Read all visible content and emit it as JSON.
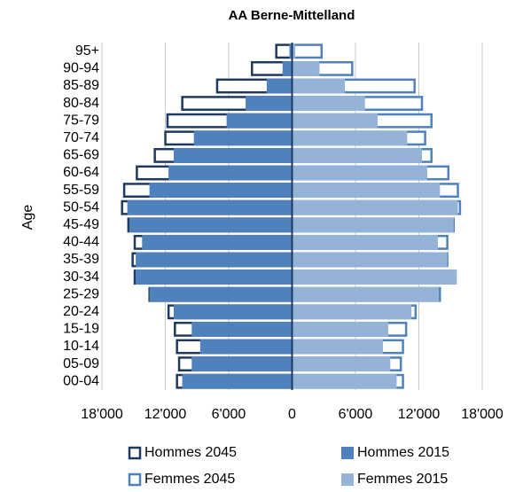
{
  "chart_data": {
    "type": "pyramid",
    "title": "AA Berne-Mittelland",
    "y_label": "Age",
    "categories": [
      "00-04",
      "05-09",
      "10-14",
      "15-19",
      "20-24",
      "25-29",
      "30-34",
      "35-39",
      "40-44",
      "45-49",
      "50-54",
      "55-59",
      "60-64",
      "65-69",
      "70-74",
      "75-79",
      "80-84",
      "85-89",
      "90-94",
      "95+"
    ],
    "series": [
      {
        "name": "Hommes 2045",
        "color": "#1f3a5f",
        "kind": "outline",
        "values": [
          -11.0,
          -10.8,
          -11.0,
          -11.2,
          -11.8,
          -13.6,
          -15.0,
          -15.2,
          -15.0,
          -15.6,
          -16.2,
          -16.0,
          -14.8,
          -13.1,
          -12.1,
          -11.9,
          -10.5,
          -7.2,
          -3.9,
          -1.6
        ]
      },
      {
        "name": "Hommes 2015",
        "color": "#4f81bd",
        "kind": "filled",
        "values": [
          -10.4,
          -9.5,
          -8.7,
          -9.5,
          -11.2,
          -13.5,
          -14.8,
          -14.8,
          -14.2,
          -15.4,
          -15.6,
          -13.5,
          -11.7,
          -11.2,
          -9.3,
          -6.2,
          -4.4,
          -2.4,
          -0.9,
          -0.25
        ]
      },
      {
        "name": "Femmes 2045",
        "color": "#4f81bd",
        "kind": "outline",
        "values": [
          10.6,
          10.4,
          10.6,
          10.9,
          11.8,
          14.1,
          15.4,
          14.8,
          14.8,
          15.4,
          16.0,
          15.8,
          14.9,
          13.3,
          12.7,
          13.3,
          12.4,
          11.7,
          5.8,
          2.9
        ]
      },
      {
        "name": "Femmes 2015",
        "color": "#95b3d7",
        "kind": "filled",
        "values": [
          9.9,
          9.3,
          8.6,
          9.1,
          11.3,
          13.9,
          15.6,
          14.7,
          13.8,
          15.3,
          15.7,
          14.0,
          12.8,
          12.3,
          10.9,
          8.1,
          6.9,
          5.0,
          2.6,
          0.3
        ]
      }
    ],
    "xlim": [
      -18000,
      18000
    ],
    "value_unit": 1000,
    "xticks": [
      {
        "value": -18000,
        "label": "18'000"
      },
      {
        "value": -12000,
        "label": "12'000"
      },
      {
        "value": -6000,
        "label": "6'000"
      },
      0,
      {
        "value": 6000,
        "label": "6'000"
      },
      {
        "value": 12000,
        "label": "12'000"
      },
      {
        "value": 18000,
        "label": "18'000"
      }
    ],
    "grid": true,
    "legend": "bottom"
  }
}
